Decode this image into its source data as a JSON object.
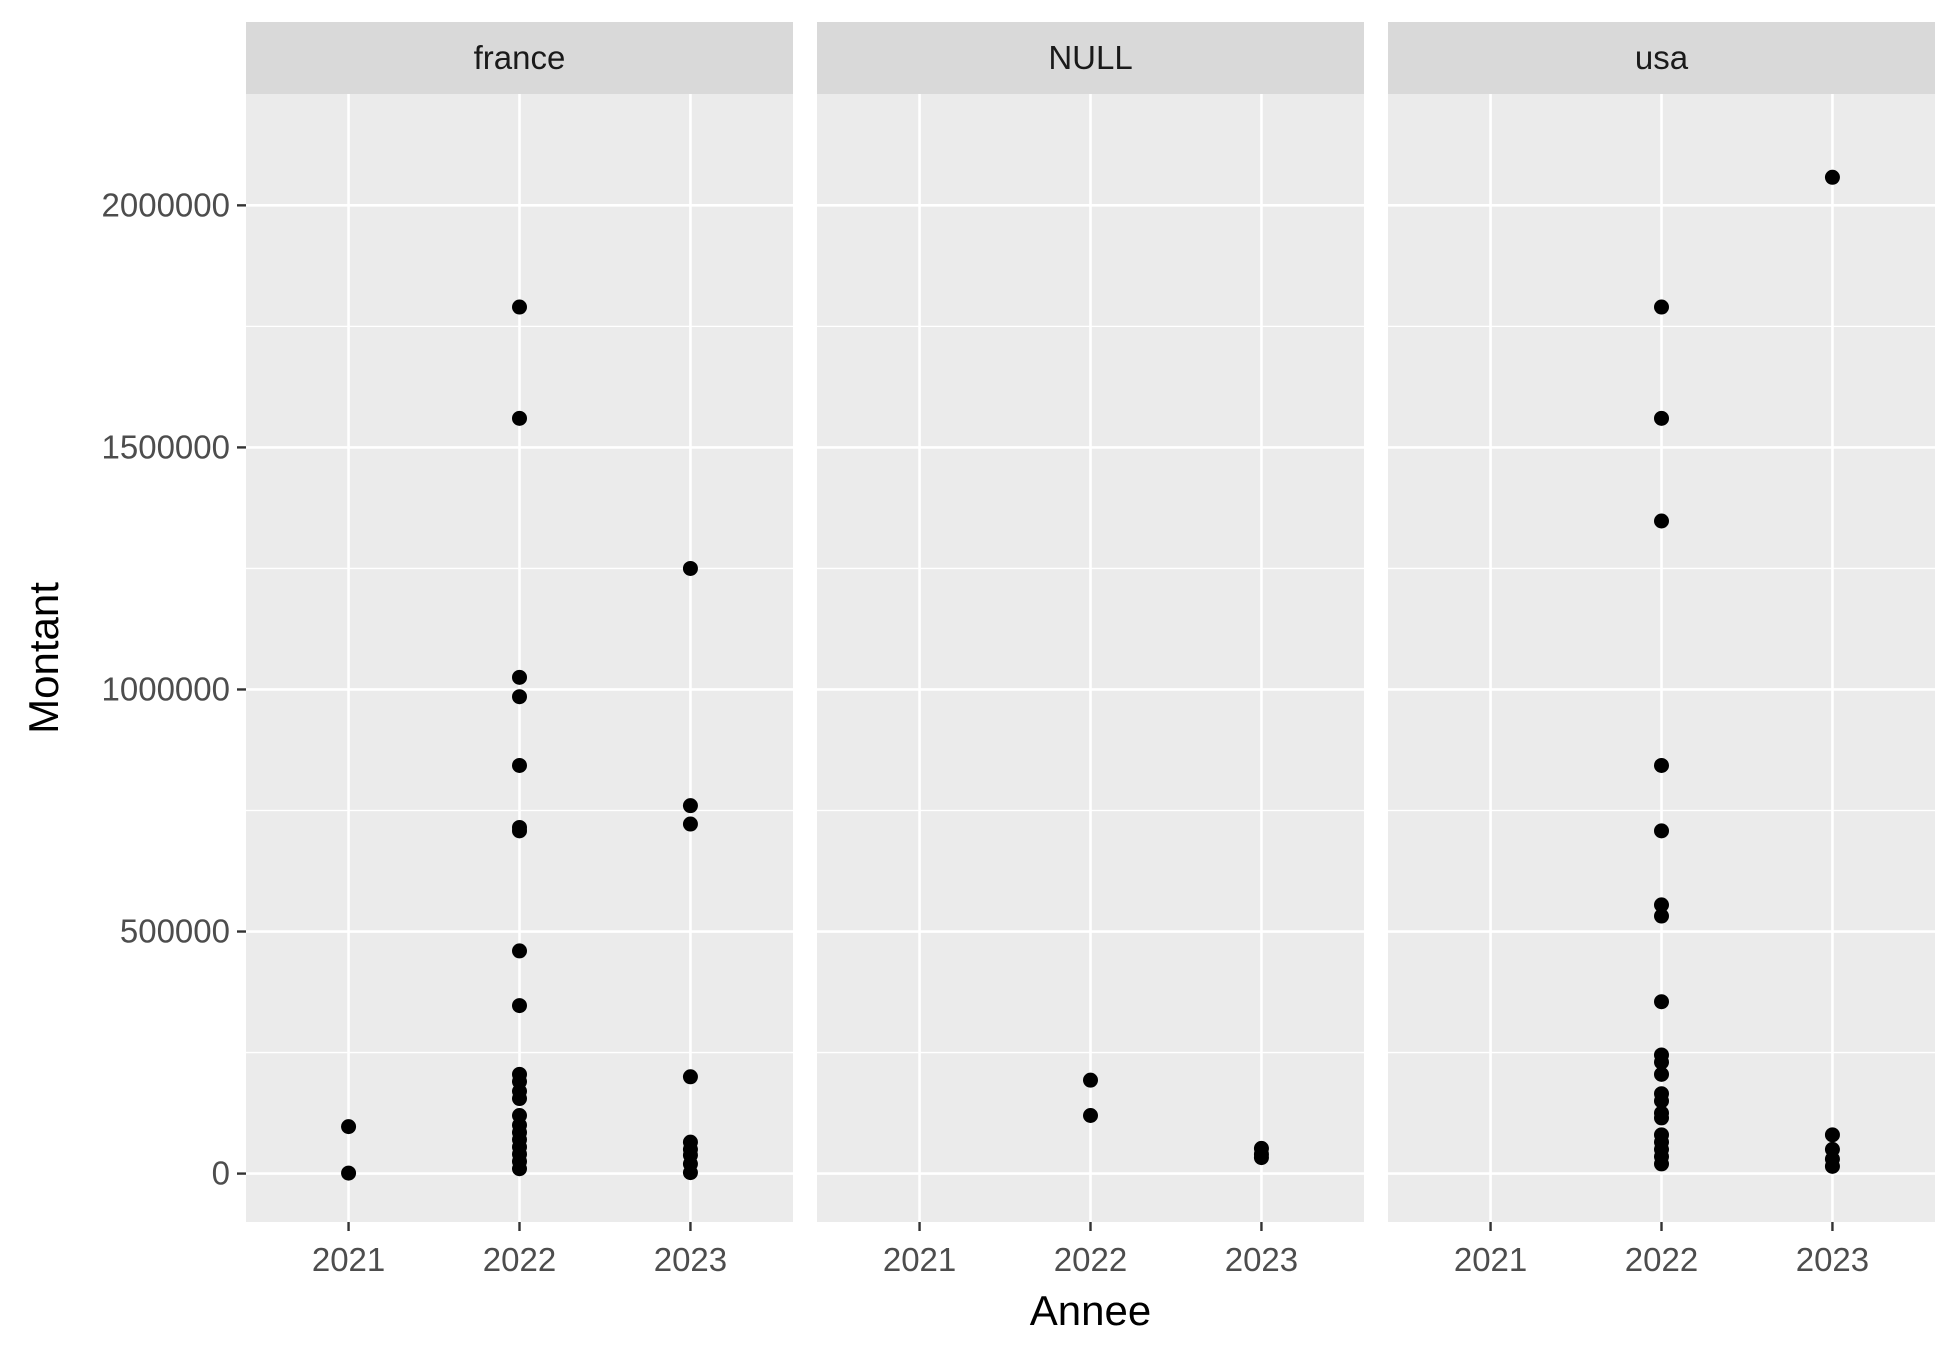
{
  "chart_data": {
    "type": "scatter",
    "xlabel": "Annee",
    "ylabel": "Montant",
    "x_ticks": [
      "2021",
      "2022",
      "2023"
    ],
    "y_ticks": [
      0,
      500000,
      1000000,
      1500000,
      2000000
    ],
    "y_tick_labels": [
      "0",
      "500000",
      "1000000",
      "1500000",
      "2000000"
    ],
    "xlim": [
      2020.4,
      2023.6
    ],
    "ylim": [
      -100000,
      2230000
    ],
    "grid": true,
    "panel_background": "#EBEBEB",
    "strip_background": "#D9D9D9",
    "point_color": "#000000",
    "panels": [
      {
        "facet": "france",
        "points": [
          [
            2021,
            97000
          ],
          [
            2021,
            1000
          ],
          [
            2022,
            1790000
          ],
          [
            2022,
            1560000
          ],
          [
            2022,
            1025000
          ],
          [
            2022,
            985000
          ],
          [
            2022,
            843000
          ],
          [
            2022,
            715000
          ],
          [
            2022,
            708000
          ],
          [
            2022,
            460000
          ],
          [
            2022,
            347000
          ],
          [
            2022,
            205000
          ],
          [
            2022,
            190000
          ],
          [
            2022,
            170000
          ],
          [
            2022,
            155000
          ],
          [
            2022,
            120000
          ],
          [
            2022,
            100000
          ],
          [
            2022,
            85000
          ],
          [
            2022,
            70000
          ],
          [
            2022,
            55000
          ],
          [
            2022,
            40000
          ],
          [
            2022,
            25000
          ],
          [
            2022,
            10000
          ],
          [
            2023,
            1250000
          ],
          [
            2023,
            760000
          ],
          [
            2023,
            722000
          ],
          [
            2023,
            200000
          ],
          [
            2023,
            65000
          ],
          [
            2023,
            50000
          ],
          [
            2023,
            38000
          ],
          [
            2023,
            20000
          ],
          [
            2023,
            2000
          ]
        ]
      },
      {
        "facet": "NULL",
        "points": [
          [
            2022,
            193000
          ],
          [
            2022,
            120000
          ],
          [
            2023,
            52000
          ],
          [
            2023,
            40000
          ],
          [
            2023,
            33000
          ]
        ]
      },
      {
        "facet": "usa",
        "points": [
          [
            2022,
            1790000
          ],
          [
            2022,
            1560000
          ],
          [
            2022,
            1348000
          ],
          [
            2022,
            843000
          ],
          [
            2022,
            708000
          ],
          [
            2022,
            555000
          ],
          [
            2022,
            532000
          ],
          [
            2022,
            355000
          ],
          [
            2022,
            245000
          ],
          [
            2022,
            230000
          ],
          [
            2022,
            205000
          ],
          [
            2022,
            165000
          ],
          [
            2022,
            150000
          ],
          [
            2022,
            125000
          ],
          [
            2022,
            115000
          ],
          [
            2022,
            80000
          ],
          [
            2022,
            65000
          ],
          [
            2022,
            50000
          ],
          [
            2022,
            35000
          ],
          [
            2022,
            20000
          ],
          [
            2023,
            2058000
          ],
          [
            2023,
            80000
          ],
          [
            2023,
            50000
          ],
          [
            2023,
            30000
          ],
          [
            2023,
            15000
          ]
        ]
      }
    ]
  }
}
